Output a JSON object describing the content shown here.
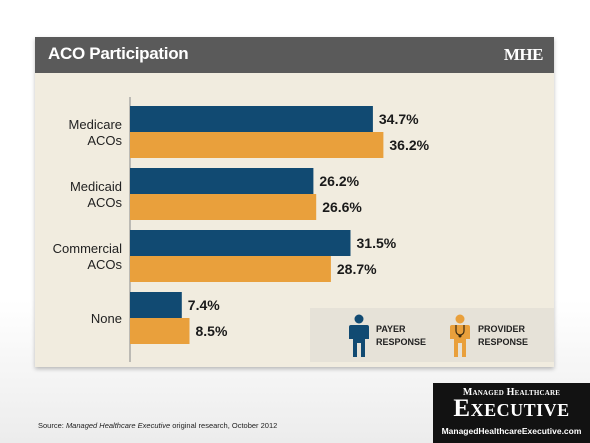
{
  "header": {
    "title": "ACO Participation",
    "brand": "MHE"
  },
  "colors": {
    "payer": "#114a72",
    "provider": "#e9a03c",
    "header_bg": "#5a5a5a",
    "panel_bg": "#f1ecdf"
  },
  "chart_data": {
    "type": "bar",
    "orientation": "horizontal",
    "title": "ACO Participation",
    "categories": [
      [
        "Medicare",
        "ACOs"
      ],
      [
        "Medicaid",
        "ACOs"
      ],
      [
        "Commercial",
        "ACOs"
      ],
      [
        "None"
      ]
    ],
    "series": [
      {
        "name": "PAYER RESPONSE",
        "color": "#114a72",
        "values": [
          34.7,
          26.2,
          31.5,
          7.4
        ],
        "labels": [
          "34.7%",
          "26.2%",
          "31.5%",
          "7.4%"
        ]
      },
      {
        "name": "PROVIDER RESPONSE",
        "color": "#e9a03c",
        "values": [
          36.2,
          26.6,
          28.7,
          8.5
        ],
        "labels": [
          "36.2%",
          "26.6%",
          "28.7%",
          "8.5%"
        ]
      }
    ],
    "xlim": [
      0,
      100
    ],
    "grid": false,
    "legend_position": "bottom-right"
  },
  "legend": {
    "payer": [
      "PAYER",
      "RESPONSE"
    ],
    "provider": [
      "PROVIDER",
      "RESPONSE"
    ],
    "payer_icon": "person-icon",
    "provider_icon": "doctor-stethoscope-icon"
  },
  "footer": {
    "source_prefix": "Source: ",
    "source_publication": "Managed Healthcare Executive",
    "source_suffix": " original research, October 2012",
    "logo_top": "Managed Healthcare",
    "logo_main": "Executive",
    "logo_url": "ManagedHealthcareExecutive.com"
  }
}
